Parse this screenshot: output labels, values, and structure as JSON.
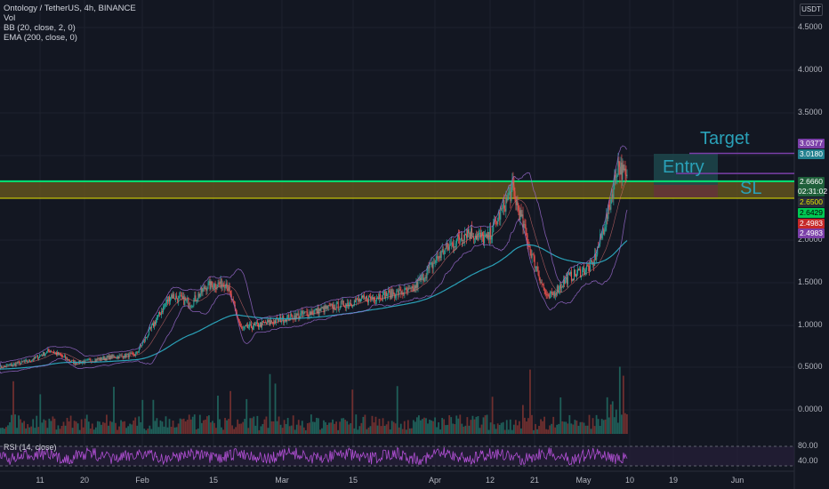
{
  "legend": {
    "title": "Ontology / TetherUS, 4h, BINANCE",
    "vol": "Vol",
    "bb": "BB (20, close, 2, 0)",
    "ema": "EMA (200, close, 0)",
    "rsi": "RSI (14, close)"
  },
  "currency": "USDT",
  "price_ticks": [
    "4.5000",
    "4.0000",
    "3.5000",
    "3.0000",
    "2.0000",
    "1.5000",
    "1.0000",
    "0.5000",
    "0.0000"
  ],
  "rsi_ticks": [
    "80.00",
    "40.00"
  ],
  "time_ticks": [
    "11",
    "20",
    "Feb",
    "15",
    "Mar",
    "15",
    "Apr",
    "12",
    "21",
    "May",
    "10",
    "19",
    "Jun"
  ],
  "badges": {
    "target_high": "3.0377",
    "target": "3.0180",
    "last": "2.6660",
    "countdown": "02:31:02",
    "entry": "2.6500",
    "bb_mid": "2.6429",
    "sl": "2.4983",
    "sl2": "2.4983"
  },
  "annotations": {
    "target": "Target",
    "entry": "Entry",
    "sl": "SL"
  },
  "colors": {
    "background": "#131722",
    "green_line": "#00e676",
    "yellow_line": "#e5e500",
    "zone": "#6b5b1f",
    "candle_up": "#26a69a",
    "candle_down": "#ef5350",
    "ema": "#2aa1b8",
    "bb": "#9c6cd1",
    "rsi": "#b04fd3",
    "target_badge": "#7b3fa8",
    "annotation": "#2aa1b8"
  },
  "chart_data": {
    "type": "candlestick",
    "symbol": "Ontology / TetherUS, 4h, BINANCE",
    "ylim": [
      0,
      4.7
    ],
    "key_levels": {
      "target": 3.018,
      "entry": 2.65,
      "stop": 2.4983,
      "green_line": 2.69,
      "yellow_line": 2.49
    },
    "close_path": [
      {
        "x": "Jan 5",
        "y": 0.5
      },
      {
        "x": "Jan 11",
        "y": 0.58
      },
      {
        "x": "Jan 15",
        "y": 0.7
      },
      {
        "x": "Jan 20",
        "y": 0.55
      },
      {
        "x": "Jan 27",
        "y": 0.62
      },
      {
        "x": "Feb 1",
        "y": 0.65
      },
      {
        "x": "Feb 8",
        "y": 1.35
      },
      {
        "x": "Feb 12",
        "y": 1.25
      },
      {
        "x": "Feb 15",
        "y": 1.45
      },
      {
        "x": "Feb 19",
        "y": 1.5
      },
      {
        "x": "Feb 22",
        "y": 0.95
      },
      {
        "x": "Mar 1",
        "y": 1.05
      },
      {
        "x": "Mar 8",
        "y": 1.15
      },
      {
        "x": "Mar 15",
        "y": 1.25
      },
      {
        "x": "Mar 22",
        "y": 1.35
      },
      {
        "x": "Mar 28",
        "y": 1.4
      },
      {
        "x": "Apr 3",
        "y": 1.85
      },
      {
        "x": "Apr 8",
        "y": 2.1
      },
      {
        "x": "Apr 12",
        "y": 2.0
      },
      {
        "x": "Apr 17",
        "y": 2.6
      },
      {
        "x": "Apr 21",
        "y": 1.8
      },
      {
        "x": "Apr 24",
        "y": 1.3
      },
      {
        "x": "Apr 28",
        "y": 1.55
      },
      {
        "x": "May 3",
        "y": 1.7
      },
      {
        "x": "May 6",
        "y": 2.3
      },
      {
        "x": "May 8",
        "y": 2.9
      },
      {
        "x": "May 10",
        "y": 2.67
      }
    ]
  }
}
